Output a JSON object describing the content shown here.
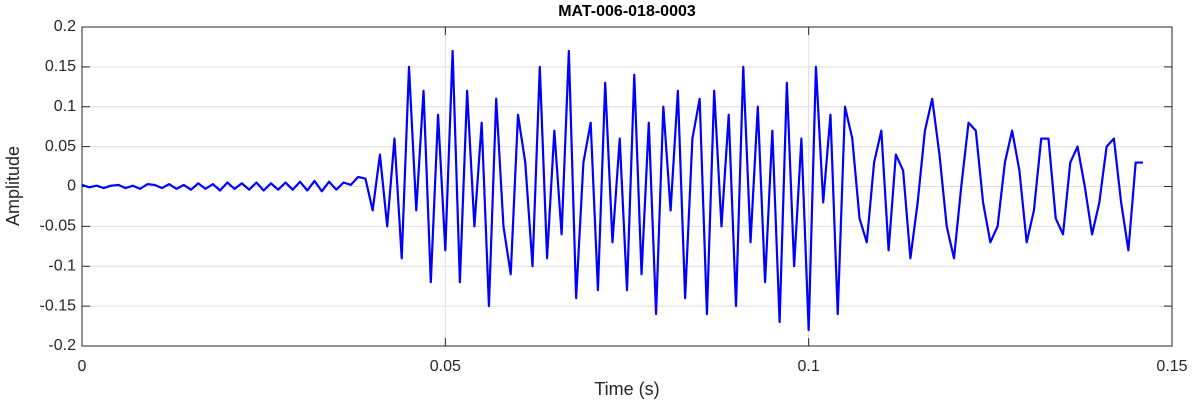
{
  "chart_data": {
    "type": "line",
    "title": "MAT-006-018-0003",
    "x_label": "Time (s)",
    "y_label": "Amplitude",
    "x": [
      0,
      0.001,
      0.002,
      0.003,
      0.004,
      0.005,
      0.006,
      0.007,
      0.008,
      0.009,
      0.01,
      0.011,
      0.012,
      0.013,
      0.014,
      0.015,
      0.016,
      0.017,
      0.018,
      0.019,
      0.02,
      0.021,
      0.022,
      0.023,
      0.024,
      0.025,
      0.026,
      0.027,
      0.028,
      0.029,
      0.03,
      0.031,
      0.032,
      0.033,
      0.034,
      0.035,
      0.036,
      0.037,
      0.038,
      0.039,
      0.04,
      0.041,
      0.042,
      0.043,
      0.044,
      0.045,
      0.046,
      0.047,
      0.048,
      0.049,
      0.05,
      0.051,
      0.052,
      0.053,
      0.054,
      0.055,
      0.056,
      0.057,
      0.058,
      0.059,
      0.06,
      0.061,
      0.062,
      0.063,
      0.064,
      0.065,
      0.066,
      0.067,
      0.068,
      0.069,
      0.07,
      0.071,
      0.072,
      0.073,
      0.074,
      0.075,
      0.076,
      0.077,
      0.078,
      0.079,
      0.08,
      0.081,
      0.082,
      0.083,
      0.084,
      0.085,
      0.086,
      0.087,
      0.088,
      0.089,
      0.09,
      0.091,
      0.092,
      0.093,
      0.094,
      0.095,
      0.096,
      0.097,
      0.098,
      0.099,
      0.1,
      0.101,
      0.102,
      0.103,
      0.104,
      0.105,
      0.106,
      0.107,
      0.108,
      0.109,
      0.11,
      0.111,
      0.112,
      0.113,
      0.114,
      0.115,
      0.116,
      0.117,
      0.118,
      0.119,
      0.12,
      0.121,
      0.122,
      0.123,
      0.124,
      0.125,
      0.126,
      0.127,
      0.128,
      0.129,
      0.13,
      0.131,
      0.132,
      0.133,
      0.134,
      0.135,
      0.136,
      0.137,
      0.138,
      0.139,
      0.14,
      0.141,
      0.142,
      0.143,
      0.144,
      0.145,
      0.146
    ],
    "values": [
      0.002,
      -0.001,
      0.001,
      -0.002,
      0.001,
      0.002,
      -0.002,
      0.001,
      -0.003,
      0.003,
      0.002,
      -0.002,
      0.003,
      -0.003,
      0.002,
      -0.004,
      0.004,
      -0.003,
      0.003,
      -0.005,
      0.005,
      -0.003,
      0.004,
      -0.004,
      0.005,
      -0.005,
      0.004,
      -0.004,
      0.005,
      -0.004,
      0.006,
      -0.005,
      0.007,
      -0.006,
      0.006,
      -0.004,
      0.005,
      0.002,
      0.012,
      0.01,
      -0.03,
      0.04,
      -0.05,
      0.06,
      -0.09,
      0.15,
      -0.03,
      0.12,
      -0.12,
      0.09,
      -0.08,
      0.17,
      -0.12,
      0.12,
      -0.05,
      0.08,
      -0.15,
      0.11,
      -0.05,
      -0.11,
      0.09,
      0.03,
      -0.1,
      0.15,
      -0.09,
      0.07,
      -0.06,
      0.17,
      -0.14,
      0.03,
      0.08,
      -0.13,
      0.13,
      -0.07,
      0.06,
      -0.13,
      0.14,
      -0.11,
      0.08,
      -0.16,
      0.1,
      -0.03,
      0.12,
      -0.14,
      0.06,
      0.11,
      -0.16,
      0.12,
      -0.05,
      0.09,
      -0.15,
      0.15,
      -0.07,
      0.1,
      -0.12,
      0.07,
      -0.17,
      0.13,
      -0.1,
      0.06,
      -0.18,
      0.15,
      -0.02,
      0.09,
      -0.16,
      0.1,
      0.06,
      -0.04,
      -0.07,
      0.03,
      0.07,
      -0.08,
      0.04,
      0.02,
      -0.09,
      -0.02,
      0.07,
      0.11,
      0.04,
      -0.05,
      -0.09,
      0.0,
      0.08,
      0.07,
      -0.02,
      -0.07,
      -0.05,
      0.03,
      0.07,
      0.02,
      -0.07,
      -0.03,
      0.06,
      0.06,
      -0.04,
      -0.06,
      0.03,
      0.05,
      0.0,
      -0.06,
      -0.02,
      0.05,
      0.06,
      -0.02,
      -0.08,
      0.03,
      0.03
    ],
    "color": "#0000ff",
    "xlim": [
      0,
      0.15
    ],
    "xticks": [
      0,
      0.05,
      0.1,
      0.15
    ],
    "ylim": [
      -0.2,
      0.2
    ],
    "yticks": [
      -0.2,
      -0.15,
      -0.1,
      -0.05,
      0,
      0.05,
      0.1,
      0.15,
      0.2
    ],
    "grid": true
  }
}
